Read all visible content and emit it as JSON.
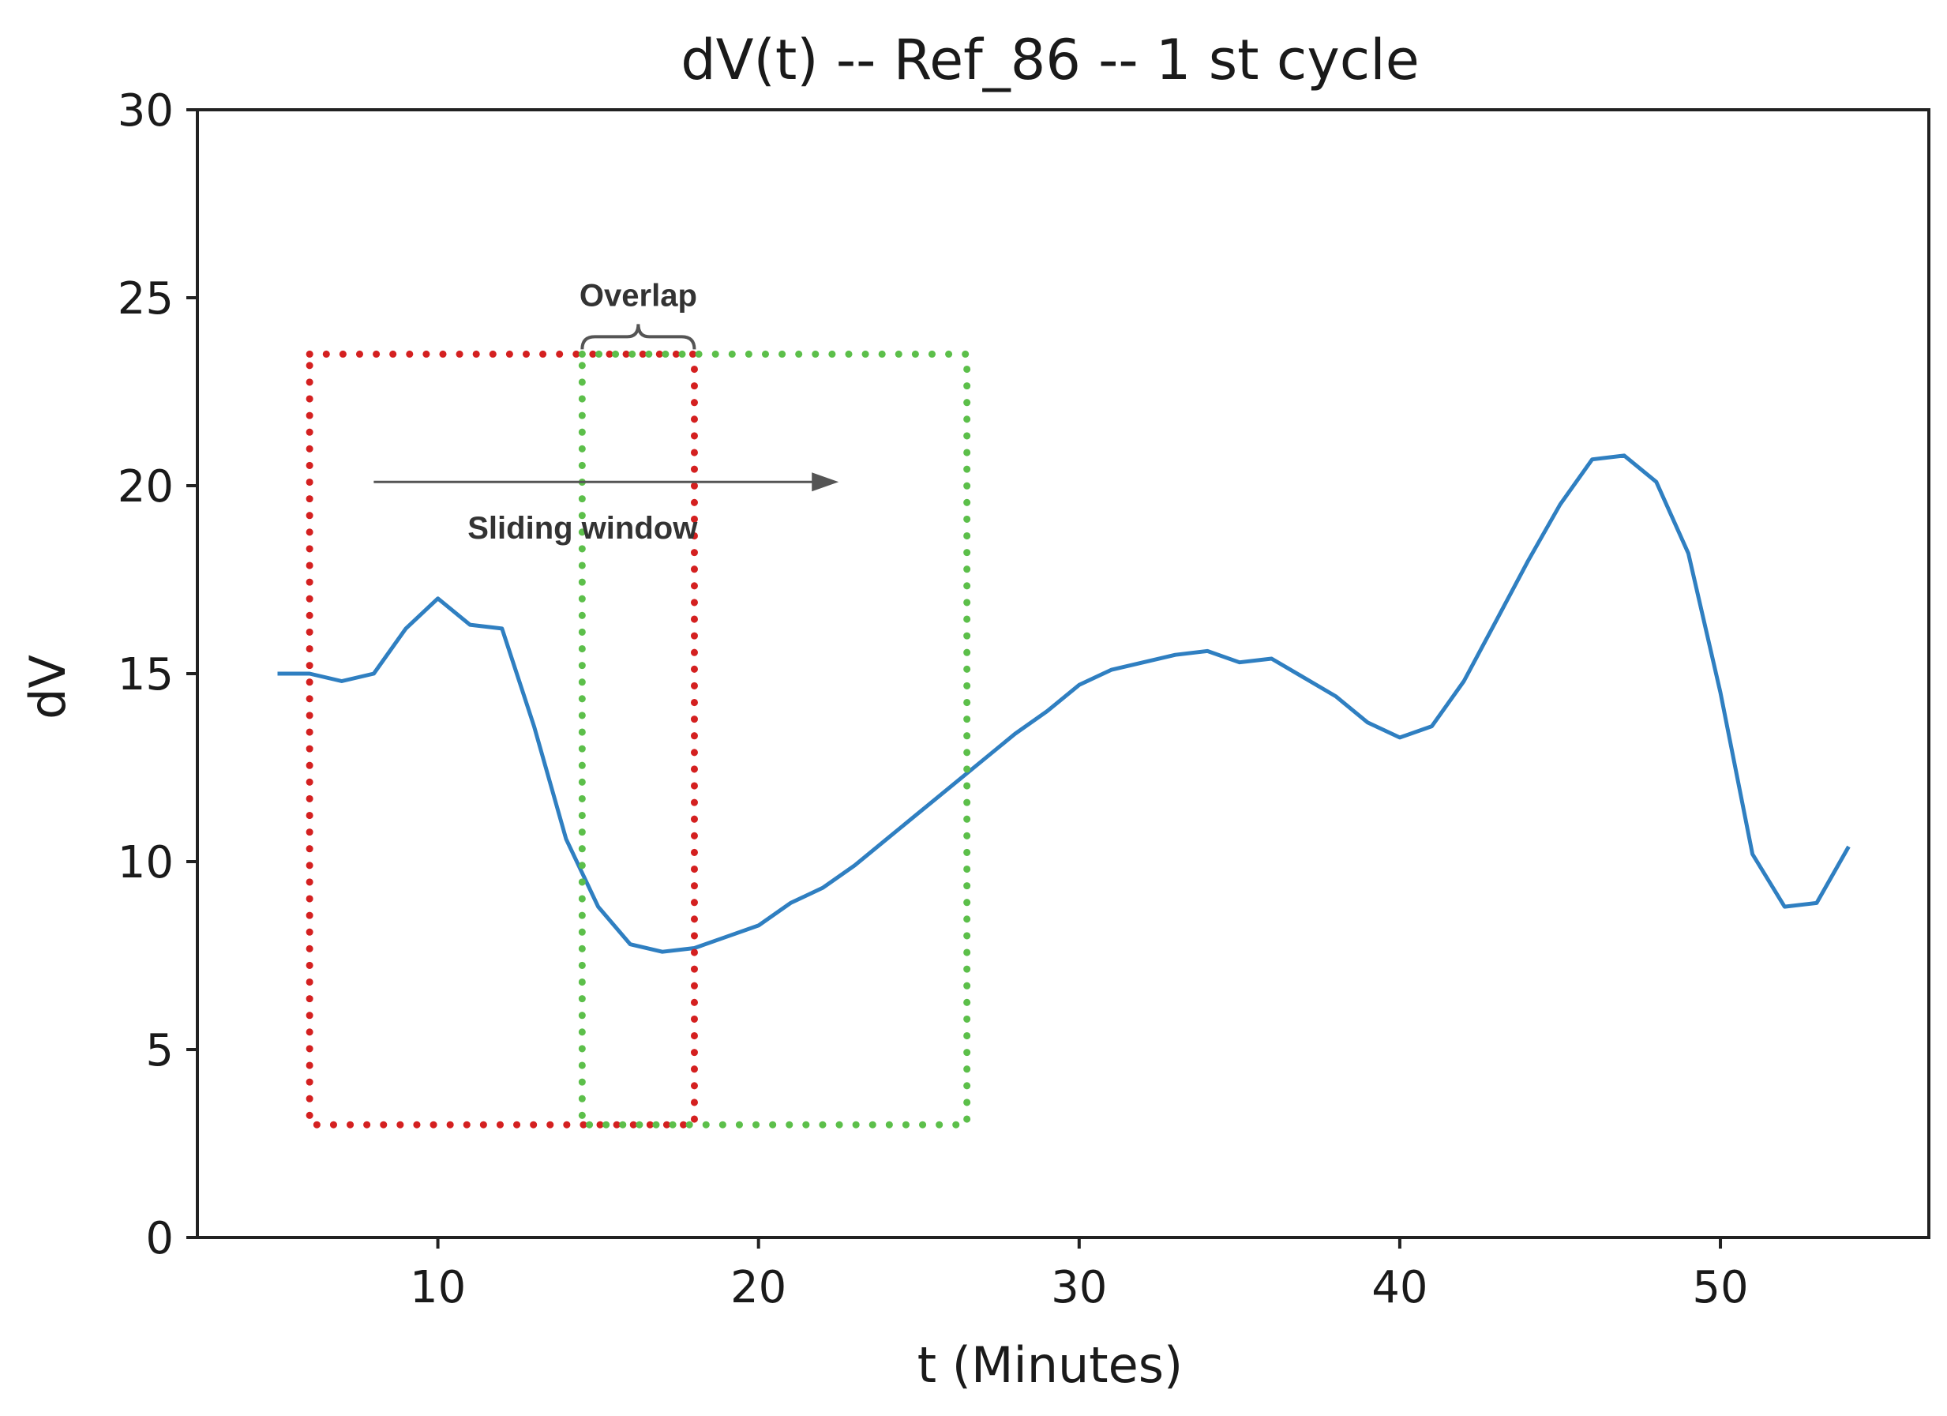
{
  "chart_data": {
    "type": "line",
    "title": "dV(t) -- Ref_86 -- 1 st cycle",
    "xlabel": "t (Minutes)",
    "ylabel": "dV",
    "xlim": [
      2.5,
      56.5
    ],
    "ylim": [
      0,
      30
    ],
    "xticks": [
      10,
      20,
      30,
      40,
      50
    ],
    "yticks": [
      0,
      5,
      10,
      15,
      20,
      25,
      30
    ],
    "grid": false,
    "series": [
      {
        "color": "#2f7fc1",
        "x": [
          5,
          6,
          7,
          8,
          9,
          10,
          11,
          12,
          13,
          14,
          15,
          16,
          17,
          18,
          19,
          20,
          21,
          22,
          23,
          24,
          25,
          26,
          27,
          28,
          29,
          30,
          31,
          32,
          33,
          34,
          35,
          36,
          37,
          38,
          39,
          40,
          41,
          42,
          43,
          44,
          45,
          46,
          47,
          48,
          49,
          50,
          51,
          52,
          53,
          54
        ],
        "y": [
          15.0,
          15.0,
          14.8,
          15.0,
          16.2,
          17.0,
          16.3,
          16.2,
          13.6,
          10.6,
          8.8,
          7.8,
          7.6,
          7.7,
          8.0,
          8.3,
          8.9,
          9.3,
          9.9,
          10.6,
          11.3,
          12.0,
          12.7,
          13.4,
          14.0,
          14.7,
          15.1,
          15.3,
          15.5,
          15.6,
          15.3,
          15.4,
          14.9,
          14.4,
          13.7,
          13.3,
          13.6,
          14.8,
          16.4,
          18.0,
          19.5,
          20.7,
          20.8,
          20.1,
          18.2,
          14.5,
          10.2,
          8.8,
          8.9,
          10.4
        ]
      }
    ],
    "annotations": {
      "overlap_label": "Overlap",
      "sliding_label": "Sliding window",
      "window_1": {
        "color": "#d42020",
        "x_range": [
          6,
          18
        ],
        "y_range": [
          3,
          23.5
        ]
      },
      "window_2": {
        "color": "#5cbf4a",
        "x_range": [
          14.5,
          26.5
        ],
        "y_range": [
          3,
          23.5
        ]
      },
      "arrow": {
        "x_range": [
          8,
          22.5
        ],
        "y": 20.1,
        "color": "#555555"
      }
    }
  }
}
